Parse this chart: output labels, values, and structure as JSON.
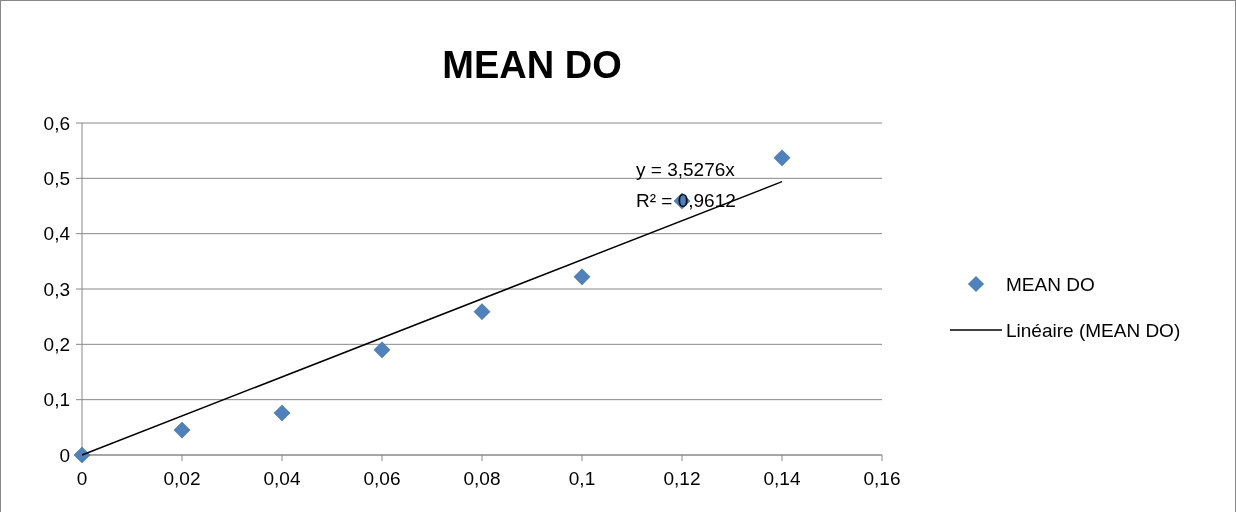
{
  "chart_data": {
    "type": "scatter",
    "title": "MEAN DO",
    "xlim": [
      0,
      0.16
    ],
    "xticks": [
      0,
      {
        "value": 0.02,
        "label": "0,02"
      },
      {
        "value": 0.04,
        "label": "0,04"
      },
      {
        "value": 0.06,
        "label": "0,06"
      },
      {
        "value": 0.08,
        "label": "0,08"
      },
      {
        "value": 0.1,
        "label": "0,1"
      },
      {
        "value": 0.12,
        "label": "0,12"
      },
      {
        "value": 0.14,
        "label": "0,14"
      },
      {
        "value": 0.16,
        "label": "0,16"
      }
    ],
    "ylim": [
      0,
      0.6
    ],
    "yticks": [
      0,
      {
        "value": 0.1,
        "label": "0,1"
      },
      {
        "value": 0.2,
        "label": "0,2"
      },
      {
        "value": 0.3,
        "label": "0,3"
      },
      {
        "value": 0.4,
        "label": "0,4"
      },
      {
        "value": 0.5,
        "label": "0,5"
      },
      {
        "value": 0.6,
        "label": "0,6"
      }
    ],
    "grid": "y",
    "legend": "right",
    "series": [
      {
        "name": "MEAN DO",
        "marker": "diamond",
        "color": "#4f81bd",
        "x": [
          0,
          0.02,
          0.04,
          0.06,
          0.08,
          0.1,
          0.12,
          0.14
        ],
        "values": [
          0,
          0.045,
          0.076,
          0.19,
          0.259,
          0.322,
          0.459,
          0.537
        ]
      },
      {
        "name": "Linéaire (MEAN DO)",
        "type": "line",
        "marker": "none",
        "color": "#000000",
        "x": [
          0,
          0.14
        ],
        "values": [
          0,
          0.494
        ]
      }
    ],
    "annotations": [
      "y = 3,5276x",
      "R² = 0,9612"
    ]
  }
}
